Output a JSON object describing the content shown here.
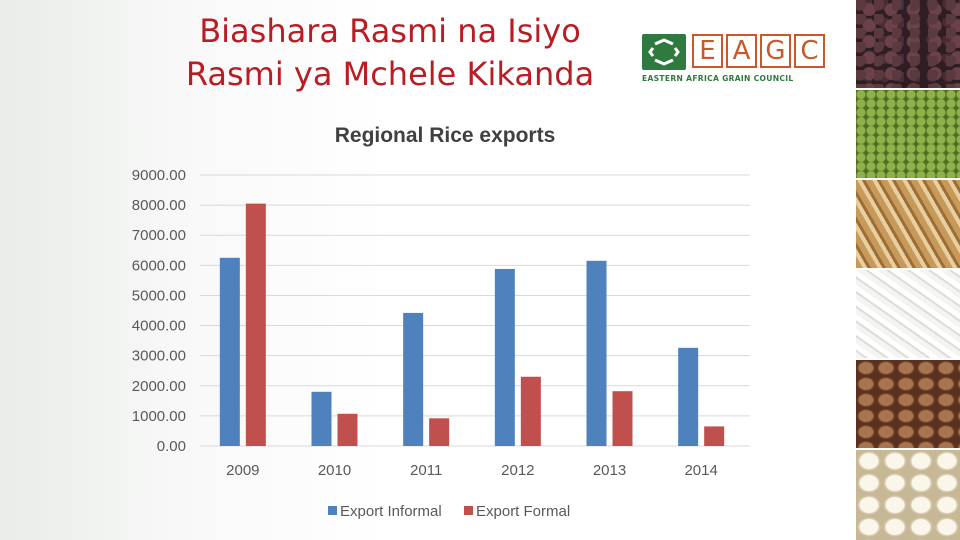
{
  "slide": {
    "title_line1": "Biashara Rasmi na Isiyo",
    "title_line2": "Rasmi ya Mchele Kikanda"
  },
  "logo": {
    "letters": [
      "E",
      "A",
      "G",
      "C"
    ],
    "subtitle": "EASTERN AFRICA GRAIN COUNCIL",
    "color_green": "#2f7a3e",
    "color_orange": "#c9582b"
  },
  "photos": [
    {
      "name": "black-beans-photo"
    },
    {
      "name": "green-gram-photo"
    },
    {
      "name": "wheat-photo"
    },
    {
      "name": "white-rice-photo"
    },
    {
      "name": "speckled-beans-photo"
    },
    {
      "name": "white-maize-photo"
    }
  ],
  "chart_data": {
    "type": "bar",
    "title": "Regional Rice exports",
    "categories": [
      "2009",
      "2010",
      "2011",
      "2012",
      "2013",
      "2014"
    ],
    "series": [
      {
        "name": "Export Informal",
        "color": "#4f81bd",
        "values": [
          6250,
          1800,
          4420,
          5880,
          6150,
          3260
        ]
      },
      {
        "name": "Export Formal",
        "color": "#c0504d",
        "values": [
          8050,
          1070,
          920,
          2300,
          1820,
          650
        ]
      }
    ],
    "ylim": [
      0,
      9000
    ],
    "yticks": [
      "0.00",
      "1000.00",
      "2000.00",
      "3000.00",
      "4000.00",
      "5000.00",
      "6000.00",
      "7000.00",
      "8000.00",
      "9000.00"
    ],
    "grid": true,
    "legend": "bottom"
  }
}
